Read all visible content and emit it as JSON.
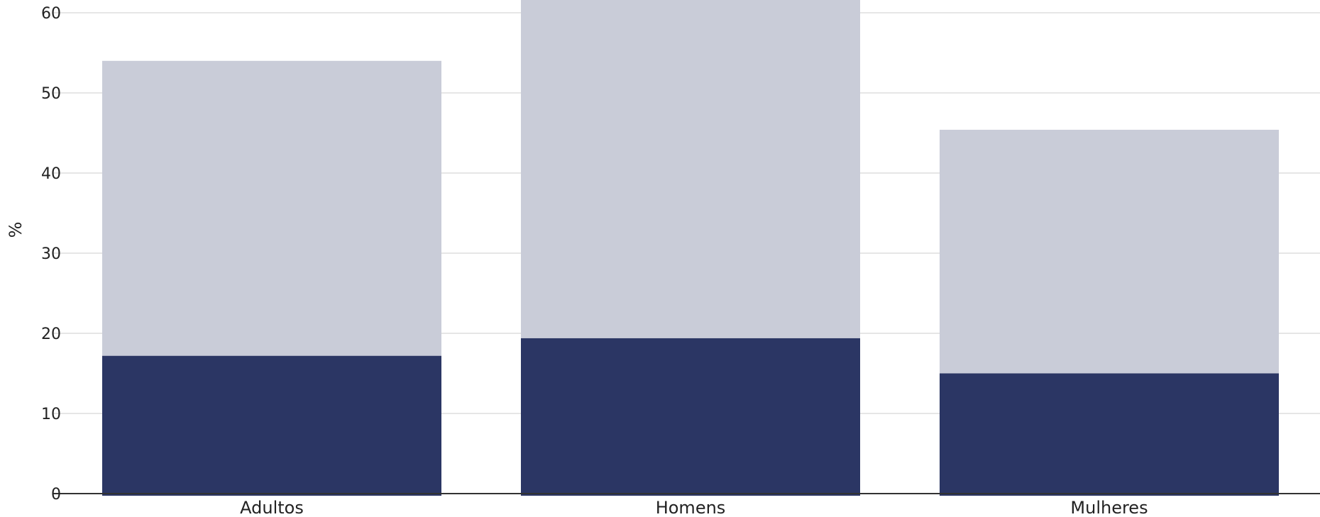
{
  "chart_data": {
    "type": "bar",
    "stacked": true,
    "categories": [
      "Adultos",
      "Homens",
      "Mulheres"
    ],
    "series": [
      {
        "values": [
          17.2,
          19.4,
          15.0
        ],
        "color": "#2b3664"
      },
      {
        "values": [
          36.8,
          45.6,
          30.4
        ],
        "color": "#c9ccd8"
      }
    ],
    "ylabel": "%",
    "ylim": [
      0,
      62
    ],
    "yticks": [
      0,
      10,
      20,
      30,
      40,
      50,
      60
    ],
    "grid": true
  }
}
